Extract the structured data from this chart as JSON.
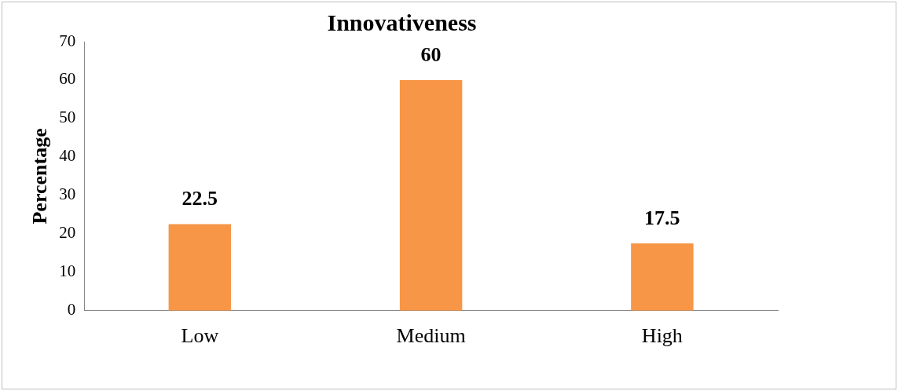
{
  "chart_data": {
    "type": "bar",
    "title": "Innovativeness",
    "ylabel": "Percentage",
    "categories": [
      "Low",
      "Medium",
      "High"
    ],
    "values": [
      22.5,
      60,
      17.5
    ],
    "color": "#f79646",
    "ylim": [
      0,
      70
    ],
    "yticks": [
      0,
      10,
      20,
      30,
      40,
      50,
      60,
      70
    ],
    "grid": false,
    "data_labels": true
  }
}
